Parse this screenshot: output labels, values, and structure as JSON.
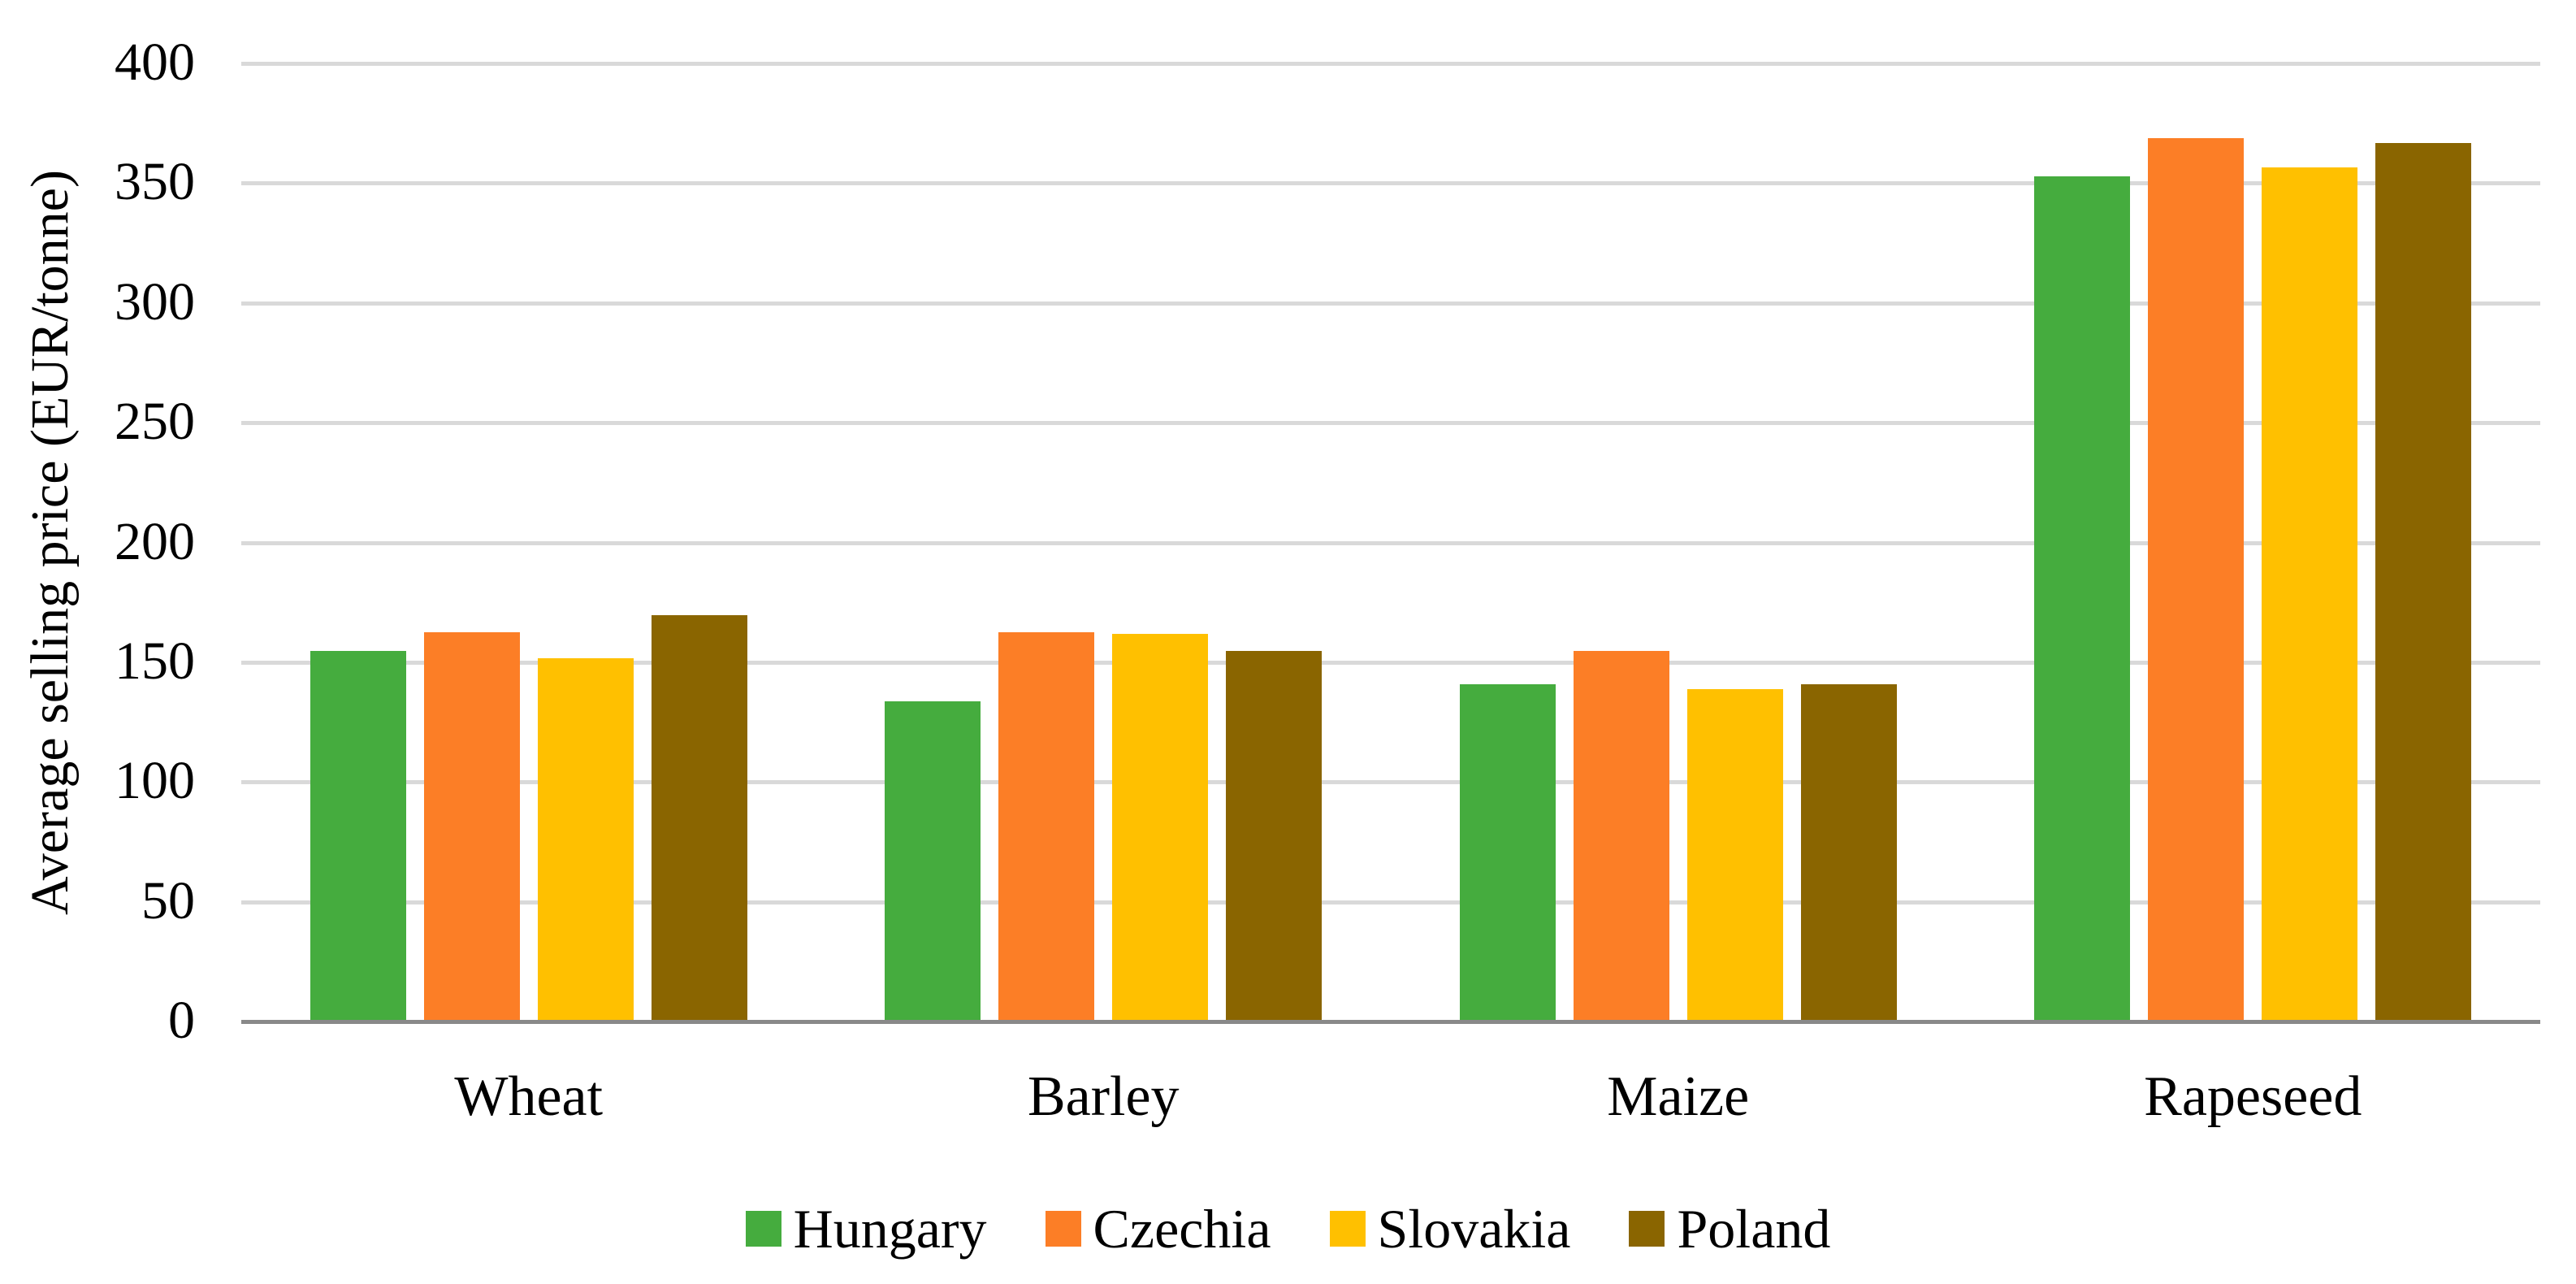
{
  "chart_data": {
    "type": "bar",
    "title": "",
    "categories": [
      "Wheat",
      "Barley",
      "Maize",
      "Rapeseed"
    ],
    "series": [
      {
        "name": "Hungary",
        "color": "#45AC3E",
        "values": [
          154,
          133,
          140,
          352
        ]
      },
      {
        "name": "Czechia",
        "color": "#FC7E26",
        "values": [
          162,
          162,
          154,
          368
        ]
      },
      {
        "name": "Slovakia",
        "color": "#FFC000",
        "values": [
          151,
          161,
          138,
          356
        ]
      },
      {
        "name": "Poland",
        "color": "#8A6500",
        "values": [
          169,
          154,
          140,
          366
        ]
      }
    ],
    "xlabel": "",
    "ylabel": "Average selling price (EUR/tonne)",
    "ylim": [
      0,
      400
    ],
    "yticks": [
      0,
      50,
      100,
      150,
      200,
      250,
      300,
      350,
      400
    ],
    "grid": true,
    "legend_position": "bottom",
    "colors": {
      "gridline": "#D9D9D9",
      "axis_line": "#898989",
      "text": "#000000",
      "background": "#FFFFFF"
    }
  }
}
